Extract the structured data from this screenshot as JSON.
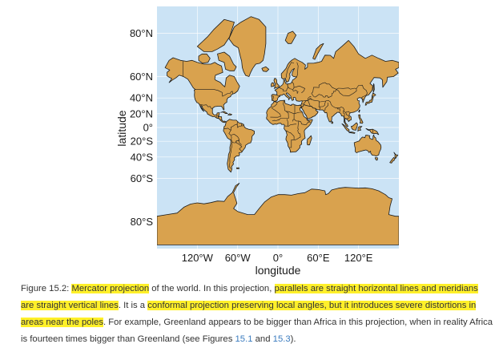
{
  "figure": {
    "colors": {
      "ocean": "#cbe3f5",
      "land": "#d9a24e",
      "border": "#1b1b1b",
      "grid": "#ffffff",
      "highlight": "#fff02a",
      "link": "#3a7bbf"
    },
    "axes": {
      "xlabel": "longitude",
      "ylabel": "latitude",
      "lat_ticks": [
        {
          "lat": 80,
          "label": "80°N"
        },
        {
          "lat": 60,
          "label": "60°N"
        },
        {
          "lat": 40,
          "label": "40°N"
        },
        {
          "lat": 20,
          "label": "20°N"
        },
        {
          "lat": 0,
          "label": "0°"
        },
        {
          "lat": -20,
          "label": "20°S"
        },
        {
          "lat": -40,
          "label": "40°S"
        },
        {
          "lat": -60,
          "label": "60°S"
        },
        {
          "lat": -80,
          "label": "80°S"
        }
      ],
      "lon_ticks": [
        {
          "lon": -120,
          "label": "120°W"
        },
        {
          "lon": -60,
          "label": "60°W"
        },
        {
          "lon": 0,
          "label": "0°"
        },
        {
          "lon": 60,
          "label": "60°E"
        },
        {
          "lon": 120,
          "label": "120°E"
        }
      ],
      "lon_range": [
        -180,
        180
      ],
      "lat_range": [
        -85,
        85
      ],
      "projection": "Mercator"
    }
  },
  "caption": {
    "prefix": "Figure 15.2: ",
    "hl1": "Mercator projection",
    "t1": " of the world. In this projection, ",
    "hl2": "parallels are straight horizontal lines and meridians are straight vertical lines",
    "t2": ". It is a ",
    "hl3": "conformal projection preserving local angles, but it introduces severe distortions in areas near the poles",
    "t3": ". For example, Greenland appears to be bigger than Africa in this projection, when in reality Africa is fourteen times bigger than Greenland (see Figures ",
    "ref1": "15.1",
    "t4": " and ",
    "ref2": "15.3",
    "t5": ")."
  }
}
